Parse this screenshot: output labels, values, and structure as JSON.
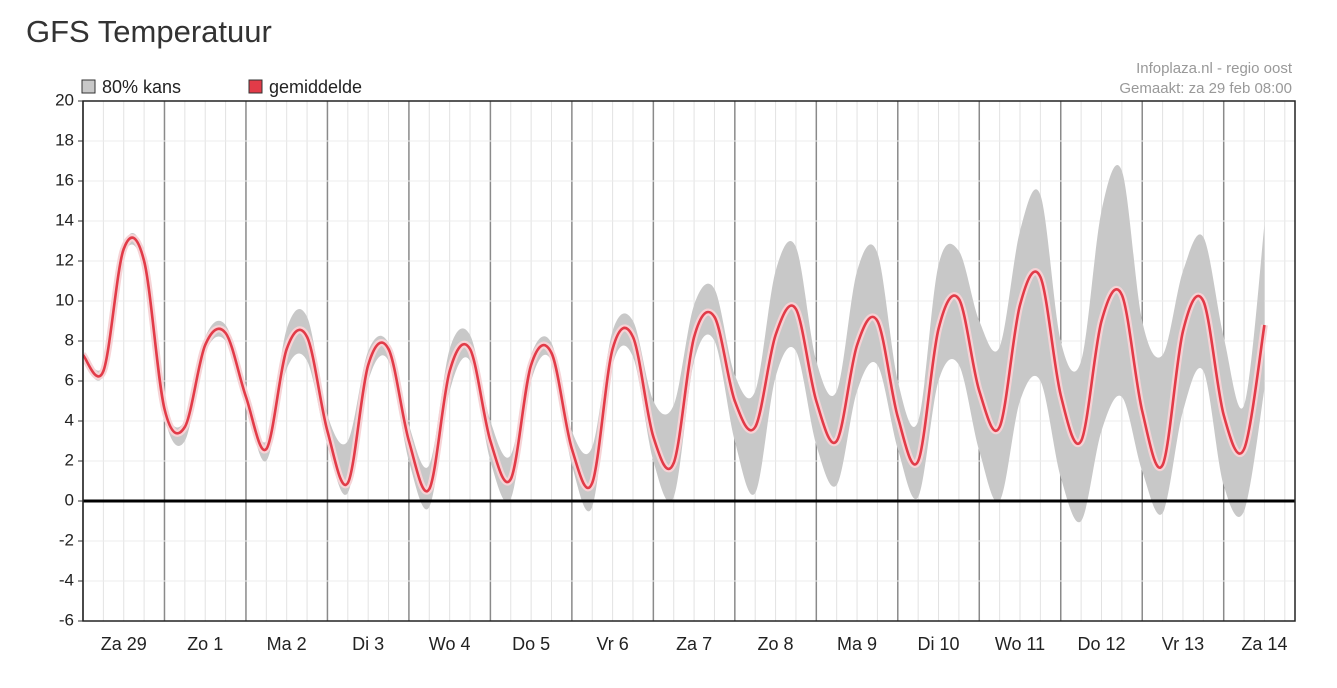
{
  "page_title": "GFS Temperatuur",
  "chart_data": {
    "type": "line",
    "source": "Infoplaza.nl - regio oost",
    "created": "Gemaakt: za 29 feb 08:00",
    "categories": [
      null,
      null,
      "Za 29",
      null,
      null,
      null,
      "Zo 1",
      null,
      null,
      null,
      "Ma 2",
      null,
      null,
      null,
      "Di 3",
      null,
      null,
      null,
      "Wo 4",
      null,
      null,
      null,
      "Do 5",
      null,
      null,
      null,
      "Vr 6",
      null,
      null,
      null,
      "Za 7",
      null,
      null,
      null,
      "Zo 8",
      null,
      null,
      null,
      "Ma 9",
      null,
      null,
      null,
      "Di 10",
      null,
      null,
      null,
      "Wo 11",
      null,
      null,
      null,
      "Do 12",
      null,
      null,
      null,
      "Vr 13",
      null,
      null,
      null,
      "Za 14"
    ],
    "series": [
      {
        "name": "80% kans",
        "color": "#c8c8c8",
        "high": [
          7.5,
          6.8,
          12.8,
          12.3,
          4.9,
          4.0,
          8.2,
          8.8,
          5.6,
          3.0,
          8.6,
          9.2,
          4.3,
          3.0,
          7.5,
          7.9,
          3.8,
          1.8,
          7.6,
          8.3,
          4.0,
          2.3,
          7.3,
          7.9,
          3.5,
          2.7,
          8.5,
          9.0,
          5.0,
          4.8,
          9.8,
          10.6,
          6.3,
          5.5,
          11.5,
          12.7,
          7.0,
          5.5,
          11.5,
          12.4,
          6.0,
          4.0,
          11.8,
          12.5,
          9.0,
          7.7,
          13.5,
          15.3,
          8.0,
          7.0,
          14.5,
          16.5,
          9.0,
          7.3,
          11.5,
          13.2,
          8.2,
          4.8,
          13.8
        ],
        "low": [
          7.0,
          6.3,
          12.3,
          11.6,
          4.2,
          3.0,
          7.4,
          8.0,
          4.8,
          2.0,
          6.6,
          7.0,
          2.8,
          0.4,
          6.0,
          7.0,
          2.0,
          -0.3,
          5.5,
          7.0,
          2.0,
          0.1,
          6.0,
          7.0,
          1.8,
          -0.3,
          6.8,
          7.2,
          2.0,
          0.2,
          7.0,
          8.0,
          3.0,
          0.4,
          6.2,
          7.5,
          2.8,
          0.8,
          5.5,
          6.8,
          2.6,
          0.2,
          6.0,
          6.8,
          2.5,
          0.0,
          5.0,
          6.0,
          1.2,
          -1.0,
          3.5,
          5.2,
          1.5,
          -0.6,
          4.5,
          6.5,
          0.8,
          -0.5,
          5.6
        ]
      },
      {
        "name": "gemiddelde",
        "color": "#e23b48",
        "values": [
          7.3,
          6.5,
          12.6,
          12.0,
          4.6,
          3.7,
          7.8,
          8.4,
          5.2,
          2.6,
          7.6,
          8.2,
          3.5,
          0.9,
          6.8,
          7.6,
          3.0,
          0.6,
          6.5,
          7.6,
          3.0,
          1.1,
          6.8,
          7.4,
          2.6,
          0.9,
          7.6,
          8.2,
          3.2,
          1.9,
          8.2,
          9.2,
          5.0,
          3.7,
          8.3,
          9.6,
          5.0,
          3.0,
          7.8,
          9.0,
          4.2,
          2.0,
          8.6,
          10.1,
          5.5,
          3.7,
          9.8,
          11.2,
          5.3,
          3.0,
          9.0,
          10.3,
          4.5,
          1.8,
          8.5,
          10.0,
          4.3,
          2.6,
          8.8
        ]
      }
    ],
    "ylim": [
      -6,
      20
    ],
    "yticks": [
      -6,
      -4,
      -2,
      0,
      2,
      4,
      6,
      8,
      10,
      12,
      14,
      16,
      18,
      20
    ],
    "grid": true
  }
}
